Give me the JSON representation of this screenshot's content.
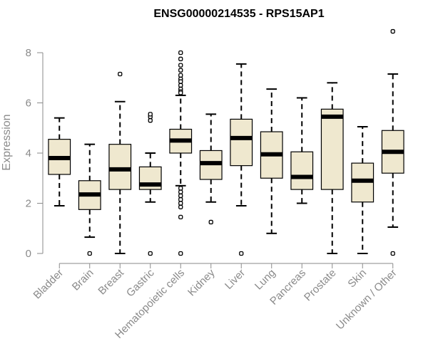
{
  "chart_data": {
    "type": "boxplot",
    "title": "ENSG00000214535 - RPS15AP1",
    "xlabel": "",
    "ylabel": "Expression",
    "ylim": [
      0,
      8
    ],
    "yticks": [
      0,
      2,
      4,
      6,
      8
    ],
    "grid": false,
    "colors": {
      "box_fill": "#efe8cf",
      "box_stroke": "#000000",
      "median": "#000000",
      "axis": "#8a8a8a"
    },
    "categories": [
      "Bladder",
      "Brain",
      "Breast",
      "Gastric",
      "Hematopoietic cells",
      "Kidney",
      "Liver",
      "Lung",
      "Pancreas",
      "Prostate",
      "Skin",
      "Unknown / Other"
    ],
    "boxes": [
      {
        "category": "Bladder",
        "whisker_low": 1.9,
        "q1": 3.15,
        "median": 3.8,
        "q3": 4.55,
        "whisker_high": 5.4,
        "outliers": []
      },
      {
        "category": "Brain",
        "whisker_low": 0.65,
        "q1": 1.75,
        "median": 2.35,
        "q3": 2.9,
        "whisker_high": 4.35,
        "outliers": [
          0
        ]
      },
      {
        "category": "Breast",
        "whisker_low": 0,
        "q1": 2.55,
        "median": 3.35,
        "q3": 4.35,
        "whisker_high": 6.05,
        "outliers": [
          7.15
        ]
      },
      {
        "category": "Gastric",
        "whisker_low": 2.05,
        "q1": 2.55,
        "median": 2.75,
        "q3": 3.45,
        "whisker_high": 4.0,
        "outliers": [
          5.3,
          5.45,
          5.55,
          0
        ]
      },
      {
        "category": "Hematopoietic cells",
        "whisker_low": 2.7,
        "q1": 4.0,
        "median": 4.5,
        "q3": 4.95,
        "whisker_high": 6.3,
        "outliers": [
          8.0,
          7.75,
          7.5,
          7.3,
          7.1,
          6.95,
          6.85,
          6.7,
          6.55,
          6.45,
          6.4,
          2.6,
          2.45,
          2.3,
          2.15,
          2.0,
          1.85,
          1.45,
          0
        ]
      },
      {
        "category": "Kidney",
        "whisker_low": 2.05,
        "q1": 2.95,
        "median": 3.6,
        "q3": 4.1,
        "whisker_high": 5.55,
        "outliers": [
          1.25
        ]
      },
      {
        "category": "Liver",
        "whisker_low": 1.9,
        "q1": 3.5,
        "median": 4.6,
        "q3": 5.35,
        "whisker_high": 7.55,
        "outliers": [
          0
        ]
      },
      {
        "category": "Lung",
        "whisker_low": 0.8,
        "q1": 3.0,
        "median": 3.95,
        "q3": 4.85,
        "whisker_high": 6.55,
        "outliers": []
      },
      {
        "category": "Pancreas",
        "whisker_low": 2.0,
        "q1": 2.55,
        "median": 3.05,
        "q3": 4.05,
        "whisker_high": 6.2,
        "outliers": []
      },
      {
        "category": "Prostate",
        "whisker_low": 0,
        "q1": 2.55,
        "median": 5.45,
        "q3": 5.75,
        "whisker_high": 6.8,
        "outliers": []
      },
      {
        "category": "Skin",
        "whisker_low": 0,
        "q1": 2.05,
        "median": 2.9,
        "q3": 3.6,
        "whisker_high": 5.05,
        "outliers": []
      },
      {
        "category": "Unknown / Other",
        "whisker_low": 1.05,
        "q1": 3.2,
        "median": 4.05,
        "q3": 4.9,
        "whisker_high": 7.15,
        "outliers": [
          8.85,
          0
        ]
      }
    ]
  }
}
